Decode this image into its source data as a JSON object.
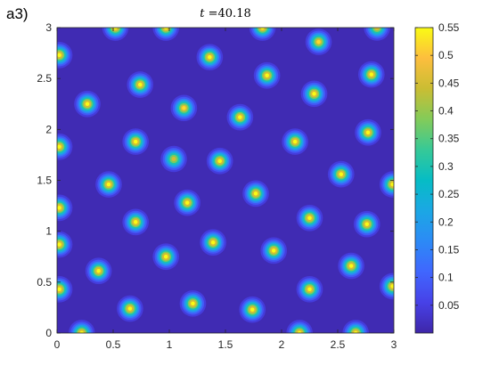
{
  "panel_label": "a3)",
  "chart_data": {
    "type": "heatmap",
    "title": {
      "variable": "t",
      "operator": " =",
      "value": "40.18"
    },
    "xlabel": "",
    "ylabel": "",
    "xlim": [
      0,
      3
    ],
    "ylim": [
      0,
      3
    ],
    "xticks": [
      "0",
      "0.5",
      "1",
      "1.5",
      "2",
      "2.5",
      "3"
    ],
    "yticks": [
      "0",
      "0.5",
      "1",
      "1.5",
      "2",
      "2.5",
      "3"
    ],
    "colormap": "parula",
    "clim": [
      0,
      0.55
    ],
    "colorbar_ticks": [
      "0.05",
      "0.1",
      "0.15",
      "0.2",
      "0.25",
      "0.3",
      "0.35",
      "0.4",
      "0.45",
      "0.5",
      "0.55"
    ],
    "background_value": 0.01,
    "spots": [
      {
        "x": 0.52,
        "y": 3.0,
        "peak": 0.55
      },
      {
        "x": 0.97,
        "y": 3.0,
        "peak": 0.55
      },
      {
        "x": 1.83,
        "y": 3.0,
        "peak": 0.55
      },
      {
        "x": 2.85,
        "y": 3.0,
        "peak": 0.5
      },
      {
        "x": 0.02,
        "y": 2.73,
        "peak": 0.55
      },
      {
        "x": 1.36,
        "y": 2.71,
        "peak": 0.55
      },
      {
        "x": 2.33,
        "y": 2.86,
        "peak": 0.52
      },
      {
        "x": 0.74,
        "y": 2.44,
        "peak": 0.55
      },
      {
        "x": 1.87,
        "y": 2.53,
        "peak": 0.55
      },
      {
        "x": 2.8,
        "y": 2.54,
        "peak": 0.55
      },
      {
        "x": 0.27,
        "y": 2.25,
        "peak": 0.55
      },
      {
        "x": 1.13,
        "y": 2.21,
        "peak": 0.52
      },
      {
        "x": 2.29,
        "y": 2.35,
        "peak": 0.55
      },
      {
        "x": 1.63,
        "y": 2.12,
        "peak": 0.55
      },
      {
        "x": 2.77,
        "y": 1.97,
        "peak": 0.55
      },
      {
        "x": 0.02,
        "y": 1.83,
        "peak": 0.55
      },
      {
        "x": 0.7,
        "y": 1.88,
        "peak": 0.55
      },
      {
        "x": 2.12,
        "y": 1.88,
        "peak": 0.55
      },
      {
        "x": 1.04,
        "y": 1.71,
        "peak": 0.48
      },
      {
        "x": 1.45,
        "y": 1.69,
        "peak": 0.55
      },
      {
        "x": 2.53,
        "y": 1.56,
        "peak": 0.55
      },
      {
        "x": 0.46,
        "y": 1.46,
        "peak": 0.55
      },
      {
        "x": 1.77,
        "y": 1.37,
        "peak": 0.55
      },
      {
        "x": 2.99,
        "y": 1.46,
        "peak": 0.55
      },
      {
        "x": 0.02,
        "y": 1.23,
        "peak": 0.55
      },
      {
        "x": 1.16,
        "y": 1.28,
        "peak": 0.55
      },
      {
        "x": 0.7,
        "y": 1.09,
        "peak": 0.55
      },
      {
        "x": 2.25,
        "y": 1.13,
        "peak": 0.55
      },
      {
        "x": 2.76,
        "y": 1.07,
        "peak": 0.55
      },
      {
        "x": 0.02,
        "y": 0.87,
        "peak": 0.55
      },
      {
        "x": 1.39,
        "y": 0.89,
        "peak": 0.55
      },
      {
        "x": 0.97,
        "y": 0.75,
        "peak": 0.55
      },
      {
        "x": 1.93,
        "y": 0.81,
        "peak": 0.55
      },
      {
        "x": 0.37,
        "y": 0.61,
        "peak": 0.55
      },
      {
        "x": 2.62,
        "y": 0.66,
        "peak": 0.55
      },
      {
        "x": 0.02,
        "y": 0.43,
        "peak": 0.55
      },
      {
        "x": 2.25,
        "y": 0.43,
        "peak": 0.55
      },
      {
        "x": 2.99,
        "y": 0.46,
        "peak": 0.55
      },
      {
        "x": 1.21,
        "y": 0.29,
        "peak": 0.55
      },
      {
        "x": 0.65,
        "y": 0.24,
        "peak": 0.55
      },
      {
        "x": 1.74,
        "y": 0.23,
        "peak": 0.55
      },
      {
        "x": 0.22,
        "y": 0.0,
        "peak": 0.55
      },
      {
        "x": 2.16,
        "y": 0.0,
        "peak": 0.55
      },
      {
        "x": 2.66,
        "y": 0.0,
        "peak": 0.55
      }
    ]
  }
}
